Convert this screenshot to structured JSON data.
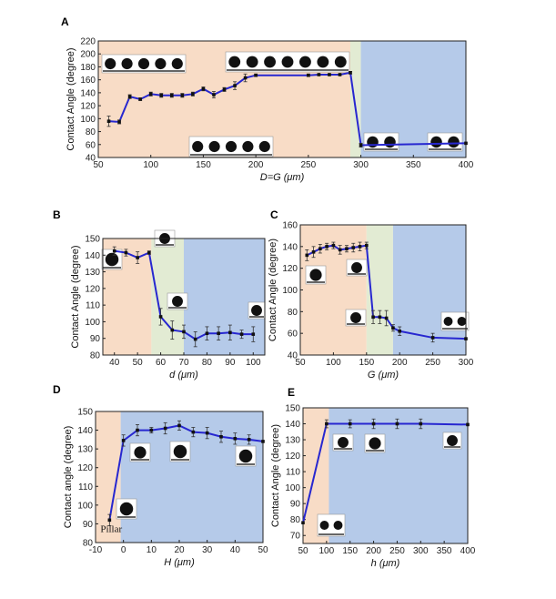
{
  "colors": {
    "peach": "#f8dcc6",
    "green": "#e2ebd3",
    "blue": "#b5cae9",
    "line": "#2727d0"
  },
  "chart_data": [
    {
      "id": "A",
      "type": "line",
      "panel_label": "A",
      "xlabel": "D=G (μm)",
      "ylabel": "Contact Angle (degree)",
      "xlim": [
        50,
        400
      ],
      "ylim": [
        40,
        220
      ],
      "xticks": [
        50,
        100,
        150,
        200,
        250,
        300,
        350,
        400
      ],
      "yticks": [
        40,
        60,
        80,
        100,
        120,
        140,
        160,
        180,
        200,
        220
      ],
      "regions": [
        {
          "from": 50,
          "to": 290,
          "color": "peach"
        },
        {
          "from": 290,
          "to": 300,
          "color": "green"
        },
        {
          "from": 300,
          "to": 400,
          "color": "blue"
        }
      ],
      "x": [
        60,
        70,
        80,
        90,
        100,
        110,
        120,
        130,
        140,
        150,
        160,
        170,
        180,
        190,
        200,
        250,
        260,
        270,
        280,
        290,
        300,
        400
      ],
      "y": [
        96,
        95,
        134,
        130,
        138,
        136,
        136,
        136,
        138,
        146,
        137,
        145,
        151,
        163,
        167,
        167,
        168,
        168,
        168,
        171,
        59,
        62
      ],
      "err": [
        8,
        3,
        3,
        2,
        3,
        3,
        3,
        3,
        3,
        3,
        5,
        3,
        6,
        6,
        2,
        2,
        1,
        1,
        1,
        2,
        3,
        0
      ]
    },
    {
      "id": "B",
      "type": "line",
      "panel_label": "B",
      "xlabel": "d (μm)",
      "ylabel": "Contact Angle (degree)",
      "xlim": [
        35,
        105
      ],
      "ylim": [
        80,
        150
      ],
      "xticks": [
        40,
        50,
        60,
        70,
        80,
        90,
        100
      ],
      "yticks": [
        80,
        90,
        100,
        110,
        120,
        130,
        140,
        150
      ],
      "regions": [
        {
          "from": 35,
          "to": 56,
          "color": "peach"
        },
        {
          "from": 56,
          "to": 70,
          "color": "green"
        },
        {
          "from": 70,
          "to": 105,
          "color": "blue"
        }
      ],
      "x": [
        40,
        45,
        50,
        55,
        60,
        65,
        70,
        75,
        80,
        85,
        90,
        95,
        100
      ],
      "y": [
        142.5,
        141.5,
        138.5,
        141.5,
        103,
        95,
        94,
        89.5,
        93,
        93,
        93.5,
        92.5,
        92.5
      ],
      "err": [
        2.5,
        2,
        3.5,
        1,
        5,
        5.5,
        4,
        4.5,
        4,
        4,
        4.5,
        2.5,
        4.5
      ]
    },
    {
      "id": "C",
      "type": "line",
      "panel_label": "C",
      "xlabel": "G (μm)",
      "ylabel": "Contact Angle (degree)",
      "xlim": [
        50,
        300
      ],
      "ylim": [
        40,
        160
      ],
      "xticks": [
        50,
        100,
        150,
        200,
        250,
        300
      ],
      "yticks": [
        40,
        60,
        80,
        100,
        120,
        140,
        160
      ],
      "regions": [
        {
          "from": 50,
          "to": 150,
          "color": "peach"
        },
        {
          "from": 150,
          "to": 190,
          "color": "green"
        },
        {
          "from": 190,
          "to": 300,
          "color": "blue"
        }
      ],
      "x": [
        60,
        70,
        80,
        90,
        100,
        110,
        120,
        130,
        140,
        150,
        160,
        170,
        180,
        190,
        200,
        250,
        300
      ],
      "y": [
        132,
        135,
        138,
        140,
        141,
        137,
        138,
        139,
        140,
        141,
        75,
        75,
        74,
        65,
        62,
        56,
        55
      ],
      "err": [
        5,
        5,
        4,
        3,
        3,
        4,
        3,
        4,
        4,
        3,
        6,
        6,
        7,
        3,
        4,
        4,
        0
      ]
    },
    {
      "id": "D",
      "type": "line",
      "panel_label": "D",
      "xlabel": "H (μm)",
      "ylabel": "Contact angle (degree)",
      "xlim": [
        -10,
        50
      ],
      "ylim": [
        80,
        150
      ],
      "xticks": [
        -10,
        0,
        10,
        20,
        30,
        40,
        50
      ],
      "yticks": [
        80,
        90,
        100,
        110,
        120,
        130,
        140,
        150
      ],
      "regions": [
        {
          "from": -10,
          "to": -1,
          "color": "peach"
        },
        {
          "from": -1,
          "to": 50,
          "color": "blue"
        }
      ],
      "annotation": "Pillar",
      "x": [
        -5,
        0,
        5,
        10,
        15,
        20,
        25,
        30,
        35,
        40,
        45,
        50
      ],
      "y": [
        92,
        134.5,
        140,
        140,
        141,
        142.5,
        139,
        138.5,
        136.5,
        135.5,
        135,
        134
      ],
      "err": [
        3,
        3,
        3,
        1.5,
        3,
        2.5,
        2.5,
        3,
        3,
        3,
        2.5,
        0
      ]
    },
    {
      "id": "E",
      "type": "line",
      "panel_label": "E",
      "xlabel": "h (μm)",
      "ylabel": "Contact Angle (degree)",
      "xlim": [
        50,
        400
      ],
      "ylim": [
        65,
        150
      ],
      "xticks": [
        50,
        100,
        150,
        200,
        250,
        300,
        350,
        400
      ],
      "yticks": [
        70,
        80,
        90,
        100,
        110,
        120,
        130,
        140,
        150
      ],
      "regions": [
        {
          "from": 50,
          "to": 105,
          "color": "peach"
        },
        {
          "from": 105,
          "to": 400,
          "color": "blue"
        }
      ],
      "x": [
        50,
        100,
        150,
        200,
        250,
        300,
        400
      ],
      "y": [
        78,
        140,
        140,
        140,
        140,
        140,
        139.5
      ],
      "err": [
        0,
        2.5,
        2.5,
        3,
        3,
        3,
        0
      ]
    }
  ]
}
